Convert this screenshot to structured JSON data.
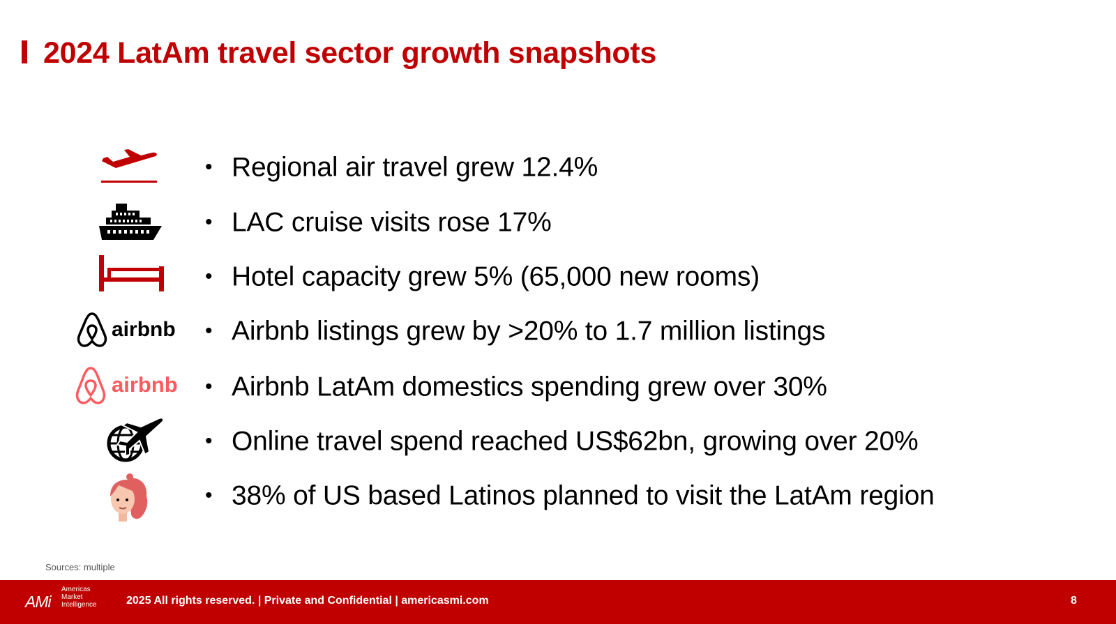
{
  "title": "2024 LatAm travel sector growth snapshots",
  "brand_color": "#c00000",
  "bullets": [
    {
      "icon": "airplane-departure-icon",
      "text": "Regional air travel grew 12.4%"
    },
    {
      "icon": "cruise-ship-icon",
      "text": "LAC cruise visits rose 17%"
    },
    {
      "icon": "bed-icon",
      "text": "Hotel capacity grew 5% (65,000 new rooms)"
    },
    {
      "icon": "airbnb-logo-black",
      "text": "Airbnb listings grew by >20% to 1.7 million listings"
    },
    {
      "icon": "airbnb-logo-red",
      "text": "Airbnb LatAm domestics spending grew over 30%"
    },
    {
      "icon": "globe-airplane-icon",
      "text": "Online travel spend reached US$62bn, growing over 20%"
    },
    {
      "icon": "woman-avatar-icon",
      "text": "38% of US based Latinos planned to visit the LatAm region"
    }
  ],
  "bullet_char": "•",
  "logos": {
    "airbnb_wordmark": "airbnb",
    "ami_mark": "AMi",
    "ami_subtitle": [
      "Americas",
      "Market",
      "Intelligence"
    ]
  },
  "sources": "Sources: multiple",
  "footer": {
    "text": "2025 All rights reserved. | Private and Confidential | americasmi.com",
    "page_number": "8"
  }
}
